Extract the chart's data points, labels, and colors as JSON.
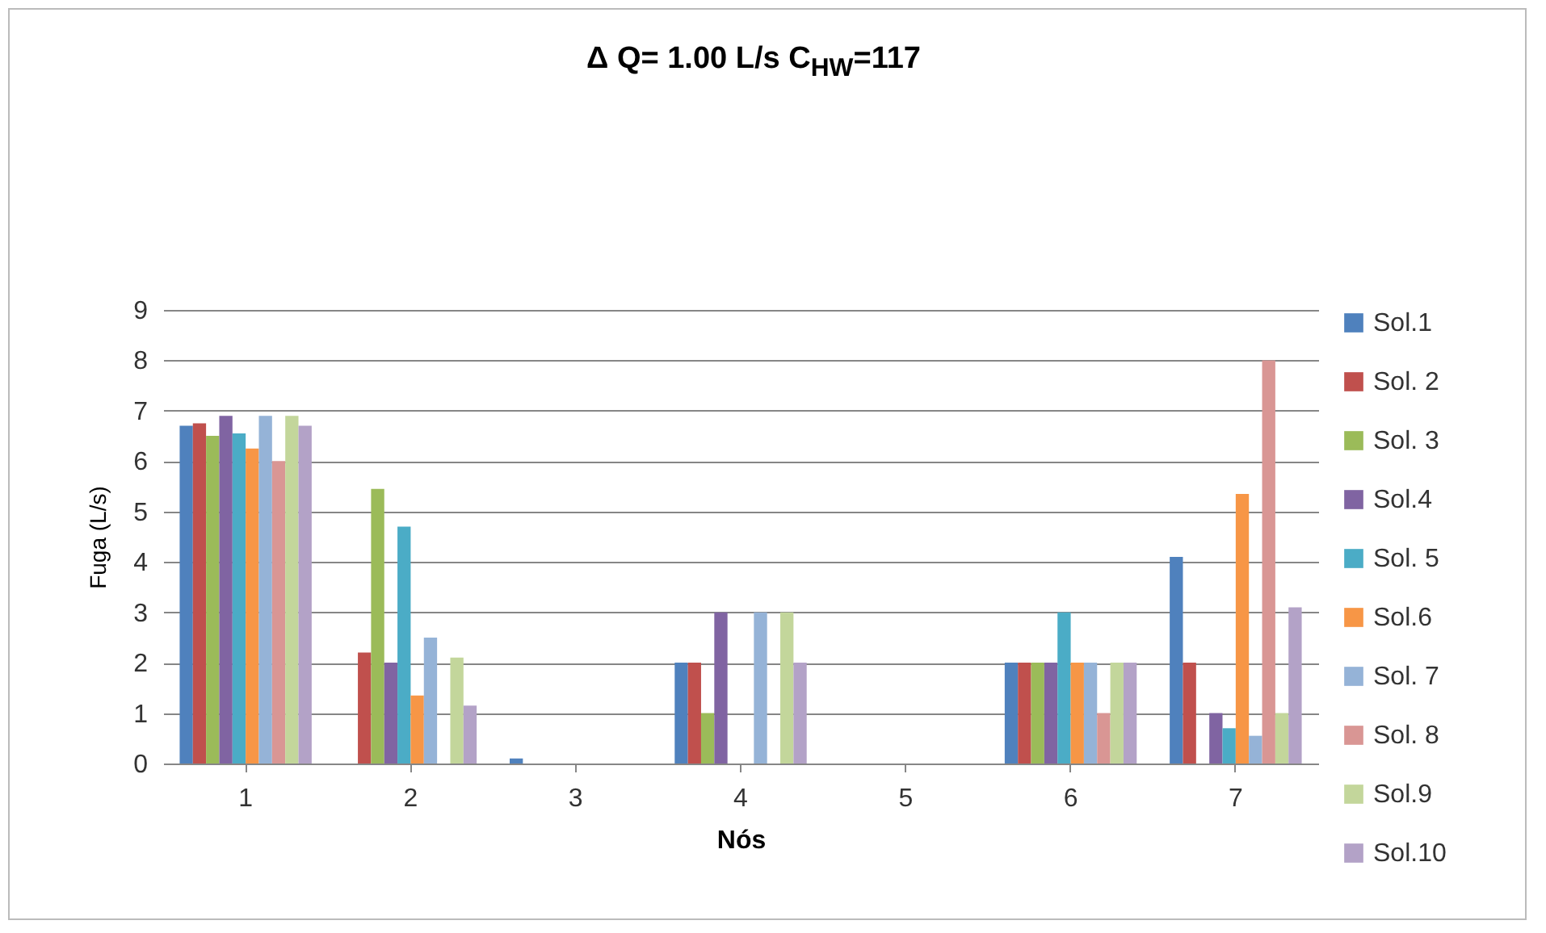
{
  "chart_data": {
    "type": "bar",
    "title": "Δ Q= 1.00 L/s C$_{HW}$=117",
    "xlabel": "Nós",
    "ylabel": "Fuga (L/s)",
    "categories": [
      "1",
      "2",
      "3",
      "4",
      "5",
      "6",
      "7"
    ],
    "series": [
      {
        "name": "Sol.1",
        "color": "#4f81bd",
        "values": [
          6.7,
          0,
          0.1,
          2,
          0,
          2,
          4.1
        ]
      },
      {
        "name": "Sol. 2",
        "color": "#c0504d",
        "values": [
          6.75,
          2.2,
          0,
          2,
          0,
          2,
          2
        ]
      },
      {
        "name": "Sol. 3",
        "color": "#9bbb59",
        "values": [
          6.5,
          5.45,
          0,
          1,
          0,
          2,
          0
        ]
      },
      {
        "name": "Sol.4",
        "color": "#8064a2",
        "values": [
          6.9,
          2,
          0,
          3,
          0,
          2,
          1
        ]
      },
      {
        "name": "Sol. 5",
        "color": "#4bacc6",
        "values": [
          6.55,
          4.7,
          0,
          0,
          0,
          3,
          0.7
        ]
      },
      {
        "name": "Sol.6",
        "color": "#f79646",
        "values": [
          6.25,
          1.35,
          0,
          0,
          0,
          2,
          5.35
        ]
      },
      {
        "name": "Sol. 7",
        "color": "#95b3d7",
        "values": [
          6.9,
          2.5,
          0,
          3,
          0,
          2,
          0.55
        ]
      },
      {
        "name": "Sol. 8",
        "color": "#d99694",
        "values": [
          6,
          0,
          0,
          0,
          0,
          1,
          8
        ]
      },
      {
        "name": "Sol.9",
        "color": "#c3d69b",
        "values": [
          6.9,
          2.1,
          0,
          3,
          0,
          2,
          1
        ]
      },
      {
        "name": "Sol.10",
        "color": "#b3a2c7",
        "values": [
          6.7,
          1.15,
          0,
          2,
          0,
          2,
          3.1
        ]
      }
    ],
    "ylim": [
      0,
      9
    ],
    "yticks": [
      0,
      1,
      2,
      3,
      4,
      5,
      6,
      7,
      8,
      9
    ],
    "grid": "y",
    "legend": "right"
  }
}
